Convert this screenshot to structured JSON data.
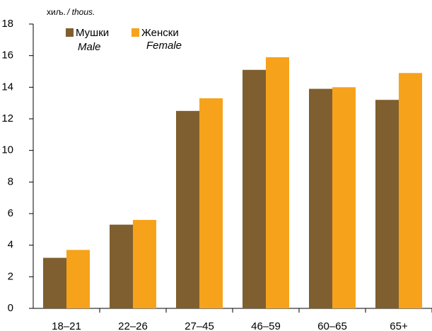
{
  "chart_data": {
    "type": "bar",
    "unit": [
      "хиљ.",
      "/ thous."
    ],
    "categories": [
      "18–21",
      "22–26",
      "27–45",
      "46–59",
      "60–65",
      "65+"
    ],
    "series": [
      {
        "name": "Мушки",
        "name_en": "Male",
        "color": "#7f5f2f",
        "values": [
          3.2,
          5.3,
          12.5,
          15.1,
          13.9,
          13.2
        ]
      },
      {
        "name": "Женски",
        "name_en": "Female",
        "color": "#f7a21b",
        "values": [
          3.7,
          5.6,
          13.3,
          15.9,
          14.0,
          14.9
        ]
      }
    ],
    "ylim": [
      0,
      18
    ],
    "yticks": [
      0,
      2,
      4,
      6,
      8,
      10,
      12,
      14,
      16,
      18
    ],
    "grid": false,
    "legend": "top-left"
  }
}
